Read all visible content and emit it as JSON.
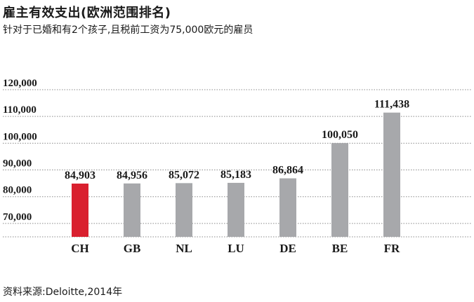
{
  "header": {
    "title": "雇主有效支出(欧洲范围排名)",
    "subtitle": "针对于已婚和有2个孩子,且税前工资为75,000欧元的雇员"
  },
  "footer": {
    "source": "资料来源:Deloitte,2014年"
  },
  "colors": {
    "highlight": "#d9202f",
    "bar": "#a7a8ab",
    "grid": "#8a8a8a",
    "text": "#1a1a1a"
  },
  "chart_data": {
    "type": "bar",
    "categories": [
      "CH",
      "GB",
      "NL",
      "LU",
      "DE",
      "BE",
      "FR"
    ],
    "values": [
      84903,
      84956,
      85072,
      85183,
      86864,
      100050,
      111438
    ],
    "value_labels": [
      "84,903",
      "84,956",
      "85,072",
      "85,183",
      "86,864",
      "100,050",
      "111,438"
    ],
    "highlight_index": 0,
    "ylim": [
      65000,
      120000
    ],
    "yticks": [
      70000,
      80000,
      90000,
      100000,
      110000,
      120000
    ],
    "ytick_labels": [
      "70,000",
      "80,000",
      "90,000",
      "100,000",
      "110,000",
      "120,000"
    ],
    "grid": "dotted-horizontal",
    "legend": "none"
  }
}
